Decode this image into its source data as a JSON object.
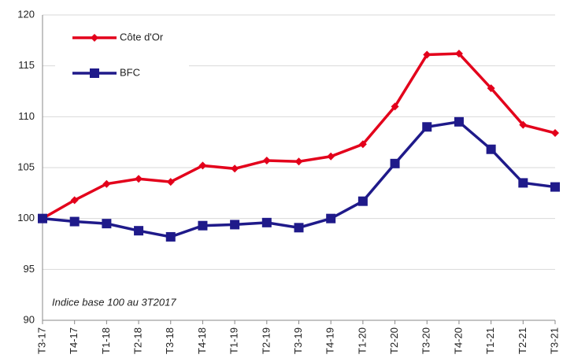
{
  "chart_data": {
    "type": "line",
    "categories": [
      "T3-17",
      "T4-17",
      "T1-18",
      "T2-18",
      "T3-18",
      "T4-18",
      "T1-19",
      "T2-19",
      "T3-19",
      "T4-19",
      "T1-20",
      "T2-20",
      "T3-20",
      "T4-20",
      "T1-21",
      "T2-21",
      "T3-21"
    ],
    "series": [
      {
        "name": "Côte d'Or",
        "color": "#e3001b",
        "marker": "diamond",
        "values": [
          100,
          101.8,
          103.4,
          103.9,
          103.6,
          105.2,
          104.9,
          105.7,
          105.6,
          106.1,
          107.3,
          111.0,
          116.1,
          116.2,
          112.8,
          109.2,
          108.4
        ]
      },
      {
        "name": "BFC",
        "color": "#1f1a8a",
        "marker": "square",
        "values": [
          100,
          99.7,
          99.5,
          98.8,
          98.2,
          99.3,
          99.4,
          99.6,
          99.1,
          100,
          101.7,
          105.4,
          109.0,
          109.5,
          106.8,
          103.5,
          103.1
        ]
      }
    ],
    "ylim": [
      90,
      120
    ],
    "yticks": [
      90,
      95,
      100,
      105,
      110,
      115,
      120
    ],
    "grid": true,
    "annotation": "Indice base 100 au 3T2017",
    "legend": "upper left"
  }
}
